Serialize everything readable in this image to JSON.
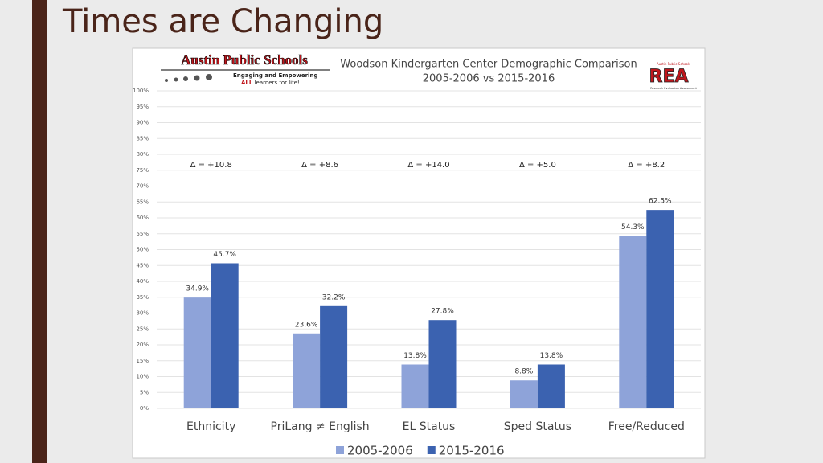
{
  "slide_title": "Times are Changing",
  "logo": {
    "name": "Austin Public Schools",
    "tagline_1": "Engaging and Empowering",
    "tagline_2_bold": "ALL",
    "tagline_2": "learners for life!"
  },
  "rea_logo": {
    "top": "Austin Public Schools",
    "name": "REA",
    "bottom": "Research Evaluation Assessment"
  },
  "chart_data": {
    "type": "bar",
    "title": "Woodson Kindergarten Center Demographic Comparison",
    "subtitle": "2005-2006 vs 2015-2016",
    "categories": [
      "Ethnicity",
      "PriLang ≠ English",
      "EL Status",
      "Sped Status",
      "Free/Reduced"
    ],
    "series": [
      {
        "name": "2005-2006",
        "color": "#8ea3d9",
        "values": [
          34.9,
          23.6,
          13.8,
          8.8,
          54.3
        ],
        "value_labels": [
          "34.9%",
          "23.6%",
          "13.8%",
          "8.8%",
          "54.3%"
        ]
      },
      {
        "name": "2015-2016",
        "color": "#3b62b0",
        "values": [
          45.7,
          32.2,
          27.8,
          13.8,
          62.5
        ],
        "value_labels": [
          "45.7%",
          "32.2%",
          "27.8%",
          "13.8%",
          "62.5%"
        ]
      }
    ],
    "annotations": [
      "Δ = +10.8",
      "Δ = +8.6",
      "Δ = +14.0",
      "Δ = +5.0",
      "Δ = +8.2"
    ],
    "ylim": [
      0,
      100
    ],
    "yticks": [
      {
        "value": 0,
        "label": "0%"
      },
      {
        "value": 5,
        "label": "5%"
      },
      {
        "value": 10,
        "label": "10%"
      },
      {
        "value": 15,
        "label": "15%"
      },
      {
        "value": 20,
        "label": "20%"
      },
      {
        "value": 25,
        "label": "25%"
      },
      {
        "value": 30,
        "label": "30%"
      },
      {
        "value": 35,
        "label": "35%"
      },
      {
        "value": 40,
        "label": "40%"
      },
      {
        "value": 45,
        "label": "45%"
      },
      {
        "value": 50,
        "label": "50%"
      },
      {
        "value": 55,
        "label": "55%"
      },
      {
        "value": 60,
        "label": "60%"
      },
      {
        "value": 65,
        "label": "65%"
      },
      {
        "value": 70,
        "label": "70%"
      },
      {
        "value": 75,
        "label": "75%"
      },
      {
        "value": 80,
        "label": "80%"
      },
      {
        "value": 85,
        "label": "85%"
      },
      {
        "value": 90,
        "label": "90%"
      },
      {
        "value": 95,
        "label": "95%"
      },
      {
        "value": 100,
        "label": "100%"
      }
    ],
    "grid": true,
    "legend": "bottom"
  }
}
